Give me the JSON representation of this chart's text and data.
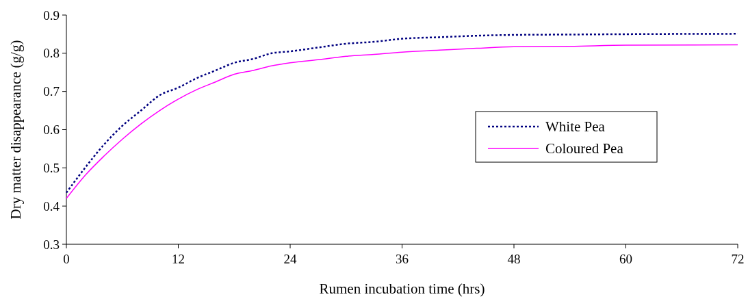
{
  "chart_data": {
    "type": "line",
    "xlabel": "Rumen incubation time (hrs)",
    "ylabel": "Dry matter disappearance (g/g)",
    "xlim": [
      0,
      72
    ],
    "xticks": [
      0,
      12,
      24,
      36,
      48,
      60,
      72
    ],
    "ylim": [
      0.3,
      0.9
    ],
    "yticks": [
      0.3,
      0.4,
      0.5,
      0.6,
      0.7,
      0.8,
      0.9
    ],
    "grid": false,
    "legend": "right",
    "marker": "none",
    "x": [
      0,
      2,
      4,
      6,
      8,
      10,
      12,
      14,
      16,
      18,
      20,
      22,
      24,
      27,
      30,
      33,
      36,
      40,
      44,
      48,
      54,
      60,
      72
    ],
    "series": [
      {
        "name": "White Pea",
        "color": "#000080",
        "line_style": "dotted",
        "values": [
          0.435,
          0.5,
          0.56,
          0.61,
          0.65,
          0.69,
          0.71,
          0.735,
          0.755,
          0.775,
          0.785,
          0.8,
          0.805,
          0.815,
          0.825,
          0.83,
          0.838,
          0.842,
          0.846,
          0.848,
          0.849,
          0.85,
          0.851
        ]
      },
      {
        "name": "Coloured Pea",
        "color": "#ff00ff",
        "line_style": "solid",
        "values": [
          0.42,
          0.48,
          0.53,
          0.575,
          0.615,
          0.65,
          0.68,
          0.705,
          0.725,
          0.745,
          0.755,
          0.767,
          0.775,
          0.783,
          0.792,
          0.797,
          0.803,
          0.808,
          0.813,
          0.817,
          0.818,
          0.821,
          0.822
        ]
      }
    ]
  }
}
